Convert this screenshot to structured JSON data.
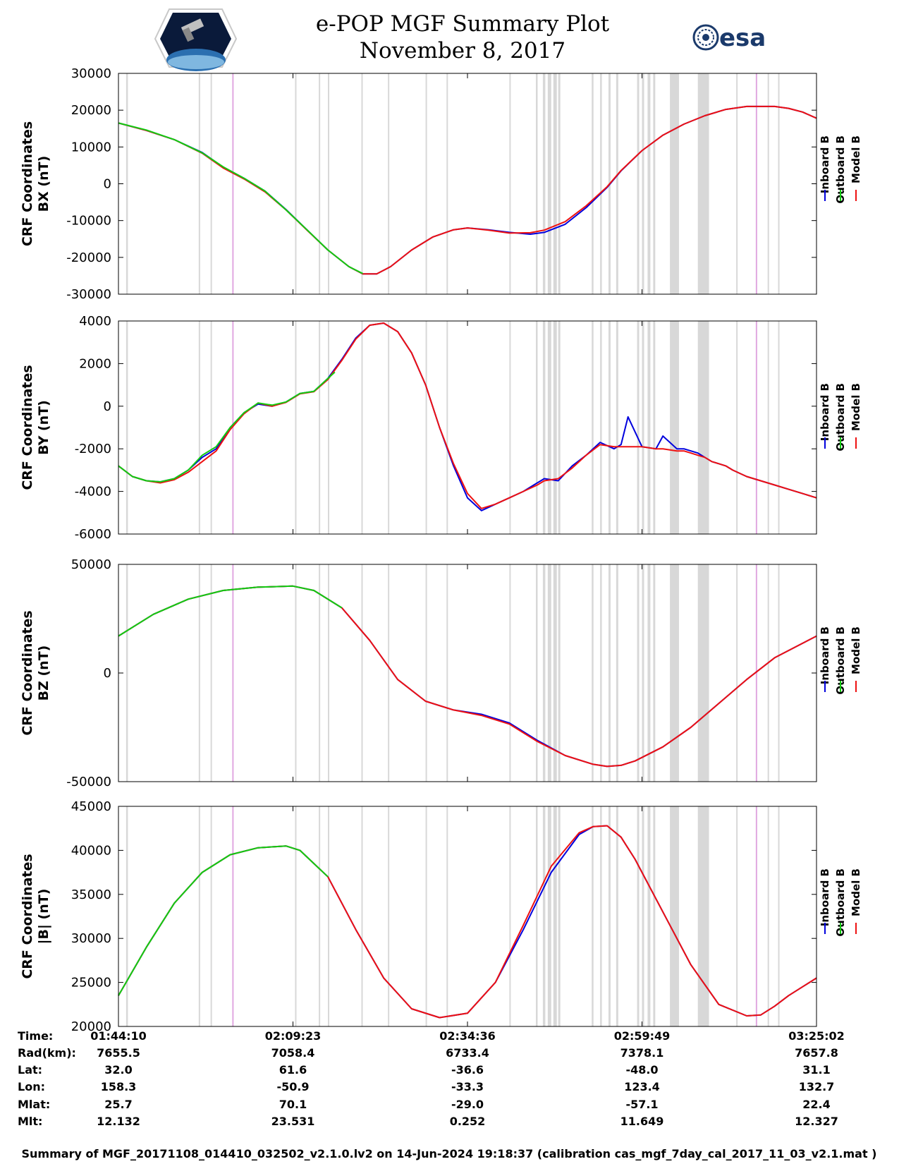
{
  "title": {
    "line1": "e-POP MGF Summary Plot",
    "line2": "November 8, 2017"
  },
  "logos": {
    "left_icon": "epop-satellite-logo",
    "right_text": "esa"
  },
  "legend_labels": [
    "Inboard B",
    "Outboard B",
    "Model B"
  ],
  "colors": {
    "inboard": "#0000dd",
    "outboard": "#11cc11",
    "model": "#ee1111",
    "gap_band": "#d8d8d8",
    "event_band": "#e0a8e0",
    "frame": "#000000"
  },
  "chart_data": [
    {
      "type": "line",
      "name": "bx",
      "ylabel_line1": "CRF Coordinates",
      "ylabel_line2": "BX (nT)",
      "ylim": [
        -30000,
        30000
      ],
      "yticks": [
        -30000,
        -20000,
        -10000,
        0,
        10000,
        20000,
        30000
      ],
      "xlim": [
        0,
        100
      ],
      "outboard_end": 35,
      "series": [
        {
          "name": "Inboard B",
          "x": [
            0,
            4,
            8,
            12,
            15,
            18,
            21,
            24,
            27,
            30,
            33,
            35,
            37,
            39,
            42,
            45,
            48,
            50,
            53,
            56,
            59,
            61,
            64,
            67,
            70,
            72,
            75,
            78,
            81,
            84,
            87,
            90,
            92,
            94,
            96,
            98,
            100
          ],
          "values": [
            16500,
            14500,
            12000,
            8500,
            4500,
            1500,
            -2000,
            -7000,
            -12500,
            -18000,
            -22500,
            -24500,
            -24500,
            -22500,
            -18000,
            -14500,
            -12500,
            -12000,
            -12500,
            -13200,
            -13700,
            -13200,
            -11000,
            -6500,
            -1000,
            3500,
            9000,
            13200,
            16200,
            18500,
            20200,
            21000,
            21000,
            21000,
            20500,
            19500,
            17800
          ]
        },
        {
          "name": "Outboard B",
          "x": [
            0,
            4,
            8,
            12,
            15,
            18,
            21,
            24,
            27,
            30,
            33,
            35
          ],
          "values": [
            16500,
            14600,
            12000,
            8400,
            4600,
            1500,
            -2000,
            -7100,
            -12500,
            -18000,
            -22500,
            -24400
          ]
        },
        {
          "name": "Model B",
          "x": [
            0,
            4,
            8,
            12,
            15,
            18,
            21,
            24,
            27,
            30,
            33,
            35,
            37,
            39,
            42,
            45,
            48,
            50,
            53,
            56,
            59,
            61,
            64,
            67,
            70,
            72,
            75,
            78,
            81,
            84,
            87,
            90,
            92,
            94,
            96,
            98,
            100
          ],
          "values": [
            16500,
            14500,
            12000,
            8300,
            4300,
            1300,
            -2200,
            -7100,
            -12600,
            -18000,
            -22500,
            -24500,
            -24500,
            -22500,
            -18000,
            -14500,
            -12500,
            -12000,
            -12600,
            -13400,
            -13300,
            -12600,
            -10300,
            -6000,
            -800,
            3600,
            9000,
            13200,
            16200,
            18500,
            20200,
            21000,
            21000,
            21000,
            20500,
            19500,
            17800
          ]
        }
      ]
    },
    {
      "type": "line",
      "name": "by",
      "ylabel_line1": "CRF Coordinates",
      "ylabel_line2": "BY (nT)",
      "ylim": [
        -6000,
        4000
      ],
      "yticks": [
        -6000,
        -4000,
        -2000,
        0,
        2000,
        4000
      ],
      "xlim": [
        0,
        100
      ],
      "outboard_end": 31,
      "series": [
        {
          "name": "Inboard B",
          "x": [
            0,
            2,
            4,
            6,
            8,
            10,
            12,
            14,
            16,
            18,
            20,
            22,
            24,
            26,
            28,
            30,
            32,
            34,
            36,
            38,
            40,
            42,
            44,
            46,
            48,
            50,
            52,
            54,
            56,
            58,
            60,
            61,
            63,
            65,
            67,
            69,
            71,
            72,
            73,
            75,
            77,
            78,
            80,
            81,
            82,
            83,
            84,
            85,
            86,
            87,
            88,
            90,
            92,
            94,
            96,
            98,
            100
          ],
          "values": [
            -2800,
            -3300,
            -3500,
            -3550,
            -3400,
            -3000,
            -2400,
            -2000,
            -1000,
            -300,
            100,
            0,
            200,
            600,
            700,
            1300,
            2200,
            3200,
            3800,
            3900,
            3500,
            2500,
            1000,
            -1000,
            -2800,
            -4300,
            -4900,
            -4600,
            -4300,
            -4000,
            -3600,
            -3400,
            -3500,
            -2800,
            -2300,
            -1700,
            -2000,
            -1800,
            -500,
            -1900,
            -2000,
            -1400,
            -2000,
            -2000,
            -2100,
            -2200,
            -2400,
            -2600,
            -2700,
            -2800,
            -3000,
            -3300,
            -3500,
            -3700,
            -3900,
            -4100,
            -4300
          ]
        },
        {
          "name": "Outboard B",
          "x": [
            0,
            2,
            4,
            6,
            8,
            10,
            12,
            14,
            16,
            18,
            20,
            22,
            24,
            26,
            28,
            30,
            31
          ],
          "values": [
            -2800,
            -3300,
            -3500,
            -3550,
            -3400,
            -3000,
            -2300,
            -1900,
            -1000,
            -300,
            150,
            50,
            200,
            600,
            700,
            1300,
            1600
          ]
        },
        {
          "name": "Model B",
          "x": [
            0,
            2,
            4,
            6,
            8,
            10,
            12,
            14,
            16,
            18,
            20,
            22,
            24,
            26,
            28,
            30,
            32,
            34,
            36,
            38,
            40,
            42,
            44,
            46,
            48,
            50,
            52,
            54,
            56,
            58,
            60,
            61,
            63,
            65,
            67,
            69,
            71,
            72,
            73,
            75,
            77,
            78,
            80,
            81,
            82,
            83,
            84,
            85,
            86,
            87,
            88,
            90,
            92,
            94,
            96,
            98,
            100
          ],
          "values": [
            -2800,
            -3300,
            -3500,
            -3600,
            -3450,
            -3100,
            -2600,
            -2100,
            -1100,
            -350,
            150,
            0,
            180,
            580,
            680,
            1250,
            2150,
            3150,
            3800,
            3900,
            3500,
            2500,
            1000,
            -1000,
            -2700,
            -4100,
            -4800,
            -4600,
            -4300,
            -4000,
            -3700,
            -3500,
            -3400,
            -2900,
            -2300,
            -1800,
            -1900,
            -1900,
            -1900,
            -1900,
            -2000,
            -2000,
            -2100,
            -2100,
            -2200,
            -2300,
            -2400,
            -2600,
            -2700,
            -2800,
            -3000,
            -3300,
            -3500,
            -3700,
            -3900,
            -4100,
            -4300
          ]
        }
      ]
    },
    {
      "type": "line",
      "name": "bz",
      "ylabel_line1": "CRF Coordinates",
      "ylabel_line2": "BZ (nT)",
      "ylim": [
        -50000,
        50000
      ],
      "yticks": [
        -50000,
        0,
        50000
      ],
      "xlim": [
        0,
        100
      ],
      "outboard_end": 32,
      "series": [
        {
          "name": "Inboard B",
          "x": [
            0,
            5,
            10,
            15,
            20,
            25,
            28,
            32,
            36,
            40,
            44,
            48,
            52,
            56,
            60,
            64,
            68,
            70,
            72,
            74,
            78,
            82,
            86,
            90,
            94,
            100
          ],
          "values": [
            17000,
            27000,
            34000,
            38000,
            39500,
            40000,
            38000,
            30000,
            15000,
            -3000,
            -13000,
            -17000,
            -19000,
            -23000,
            -31000,
            -38000,
            -42000,
            -43000,
            -42500,
            -40500,
            -34000,
            -25000,
            -14000,
            -3000,
            7000,
            17000
          ]
        },
        {
          "name": "Outboard B",
          "x": [
            0,
            5,
            10,
            15,
            20,
            25,
            28,
            32
          ],
          "values": [
            17000,
            27000,
            34000,
            38000,
            39500,
            40000,
            38000,
            30000
          ]
        },
        {
          "name": "Model B",
          "x": [
            0,
            5,
            10,
            15,
            20,
            25,
            28,
            32,
            36,
            40,
            44,
            48,
            52,
            56,
            60,
            64,
            68,
            70,
            72,
            74,
            78,
            82,
            86,
            90,
            94,
            100
          ],
          "values": [
            17000,
            27000,
            34000,
            38000,
            39500,
            40000,
            38000,
            30000,
            15000,
            -3000,
            -13000,
            -17000,
            -19500,
            -23500,
            -31500,
            -38000,
            -42000,
            -43000,
            -42500,
            -40500,
            -34000,
            -25000,
            -14000,
            -3000,
            7000,
            17000
          ]
        }
      ]
    },
    {
      "type": "line",
      "name": "btot",
      "ylabel_line1": "CRF Coordinates",
      "ylabel_line2": "|B| (nT)",
      "ylim": [
        20000,
        45000
      ],
      "yticks": [
        20000,
        25000,
        30000,
        35000,
        40000,
        45000
      ],
      "xlim": [
        0,
        100
      ],
      "outboard_end": 30,
      "series": [
        {
          "name": "Inboard B",
          "x": [
            0,
            4,
            8,
            12,
            16,
            20,
            24,
            26,
            28,
            30,
            34,
            38,
            42,
            46,
            50,
            54,
            58,
            62,
            66,
            68,
            70,
            72,
            74,
            78,
            82,
            86,
            90,
            92,
            94,
            96,
            98,
            100
          ],
          "values": [
            23500,
            29000,
            34000,
            37500,
            39500,
            40300,
            40500,
            40000,
            38500,
            37000,
            31000,
            25500,
            22000,
            21000,
            21500,
            25000,
            31000,
            37500,
            41800,
            42700,
            42800,
            41500,
            39000,
            33000,
            27000,
            22500,
            21200,
            21300,
            22300,
            23500,
            24500,
            25500
          ]
        },
        {
          "name": "Outboard B",
          "x": [
            0,
            4,
            8,
            12,
            16,
            20,
            24,
            26,
            28,
            30
          ],
          "values": [
            23500,
            29000,
            34000,
            37500,
            39500,
            40300,
            40500,
            40000,
            38500,
            37000
          ]
        },
        {
          "name": "Model B",
          "x": [
            0,
            4,
            8,
            12,
            16,
            20,
            24,
            26,
            28,
            30,
            34,
            38,
            42,
            46,
            50,
            54,
            58,
            62,
            66,
            68,
            70,
            72,
            74,
            78,
            82,
            86,
            90,
            92,
            94,
            96,
            98,
            100
          ],
          "values": [
            23500,
            29000,
            34000,
            37500,
            39500,
            40300,
            40500,
            40000,
            38500,
            37000,
            31000,
            25500,
            22000,
            21000,
            21500,
            25000,
            31500,
            38200,
            42000,
            42700,
            42800,
            41500,
            39000,
            33000,
            27000,
            22500,
            21200,
            21300,
            22300,
            23500,
            24500,
            25500
          ]
        }
      ]
    }
  ],
  "gap_bands": [
    {
      "x": 1.1,
      "w": 0.25
    },
    {
      "x": 11.5,
      "w": 0.2
    },
    {
      "x": 13.2,
      "w": 0.2
    },
    {
      "x": 25.3,
      "w": 0.2
    },
    {
      "x": 28.7,
      "w": 0.2
    },
    {
      "x": 30.0,
      "w": 0.2
    },
    {
      "x": 34.8,
      "w": 0.2
    },
    {
      "x": 38.6,
      "w": 0.2
    },
    {
      "x": 44.0,
      "w": 0.2
    },
    {
      "x": 47.0,
      "w": 0.2
    },
    {
      "x": 56.0,
      "w": 0.2
    },
    {
      "x": 59.8,
      "w": 0.25
    },
    {
      "x": 60.8,
      "w": 0.35
    },
    {
      "x": 61.5,
      "w": 0.5
    },
    {
      "x": 62.3,
      "w": 0.5
    },
    {
      "x": 63.0,
      "w": 0.3
    },
    {
      "x": 67.8,
      "w": 0.25
    },
    {
      "x": 69.0,
      "w": 0.25
    },
    {
      "x": 70.2,
      "w": 0.3
    },
    {
      "x": 71.3,
      "w": 0.3
    },
    {
      "x": 74.3,
      "w": 0.3
    },
    {
      "x": 75.0,
      "w": 0.3
    },
    {
      "x": 75.8,
      "w": 0.4
    },
    {
      "x": 76.6,
      "w": 0.3
    },
    {
      "x": 79.0,
      "w": 1.3
    },
    {
      "x": 83.0,
      "w": 1.6
    },
    {
      "x": 88.5,
      "w": 0.2
    },
    {
      "x": 93.0,
      "w": 0.2
    },
    {
      "x": 94.5,
      "w": 0.2
    }
  ],
  "event_bands": [
    {
      "x": 16.3,
      "w": 0.2
    },
    {
      "x": 91.3,
      "w": 0.2
    }
  ],
  "ephemeris": {
    "row_labels": [
      "Time:",
      "Rad(km):",
      "Lat:",
      "Lon:",
      "Mlat:",
      "Mlt:"
    ],
    "columns": [
      {
        "frac": 0.0,
        "values": [
          "01:44:10",
          "7655.5",
          "32.0",
          "158.3",
          "25.7",
          "12.132"
        ]
      },
      {
        "frac": 0.25,
        "values": [
          "02:09:23",
          "7058.4",
          "61.6",
          "-50.9",
          "70.1",
          "23.531"
        ]
      },
      {
        "frac": 0.5,
        "values": [
          "02:34:36",
          "6733.4",
          "-36.6",
          "-33.3",
          "-29.0",
          "0.252"
        ]
      },
      {
        "frac": 0.75,
        "values": [
          "02:59:49",
          "7378.1",
          "-48.0",
          "123.4",
          "-57.1",
          "11.649"
        ]
      },
      {
        "frac": 1.0,
        "values": [
          "03:25:02",
          "7657.8",
          "31.1",
          "132.7",
          "22.4",
          "12.327"
        ]
      }
    ]
  },
  "footer": "Summary of MGF_20171108_014410_032502_v2.1.0.lv2 on 14-Jun-2024 19:18:37 (calibration cas_mgf_7day_cal_2017_11_03_v2.1.mat )"
}
